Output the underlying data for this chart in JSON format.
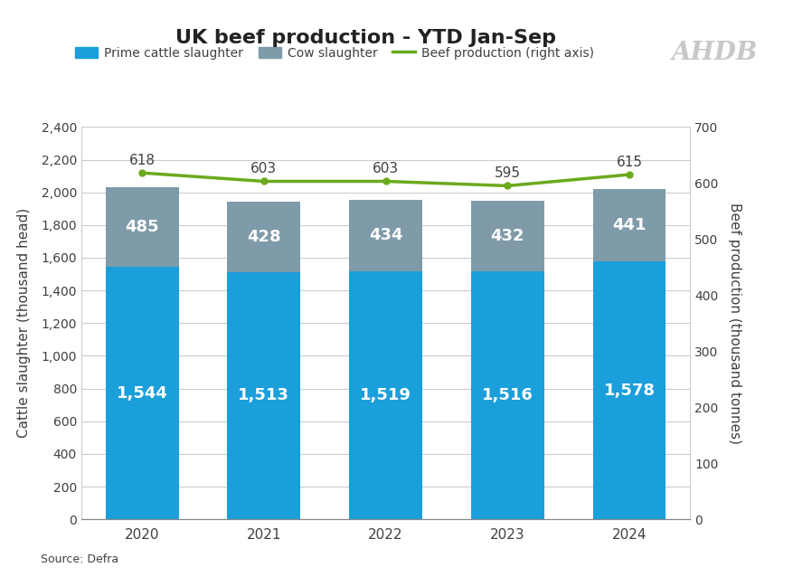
{
  "title": "UK beef production - YTD Jan-Sep",
  "years": [
    2020,
    2021,
    2022,
    2023,
    2024
  ],
  "prime_cattle": [
    1544,
    1513,
    1519,
    1516,
    1578
  ],
  "cow_slaughter": [
    485,
    428,
    434,
    432,
    441
  ],
  "beef_production": [
    618,
    603,
    603,
    595,
    615
  ],
  "prime_color": "#1a9fda",
  "cow_color": "#7f9baa",
  "line_color": "#6aaa1e",
  "bar_width": 0.6,
  "ylim_left": [
    0,
    2400
  ],
  "ylim_right": [
    0,
    700
  ],
  "yticks_left": [
    0,
    200,
    400,
    600,
    800,
    1000,
    1200,
    1400,
    1600,
    1800,
    2000,
    2200,
    2400
  ],
  "yticks_right": [
    0,
    100,
    200,
    300,
    400,
    500,
    600,
    700
  ],
  "ylabel_left": "Cattle slaughter (thousand head)",
  "ylabel_right": "Beef production (thousand tonnes)",
  "source": "Source: Defra",
  "legend_labels": [
    "Prime cattle slaughter",
    "Cow slaughter",
    "Beef production (right axis)"
  ],
  "background_color": "#ffffff",
  "grid_color": "#cccccc",
  "text_color": "#404040",
  "label_fontsize": 11,
  "title_fontsize": 16,
  "bar_label_fontsize": 13,
  "ahdb_text": "AHDB",
  "ahdb_color": "#c8c8c8"
}
